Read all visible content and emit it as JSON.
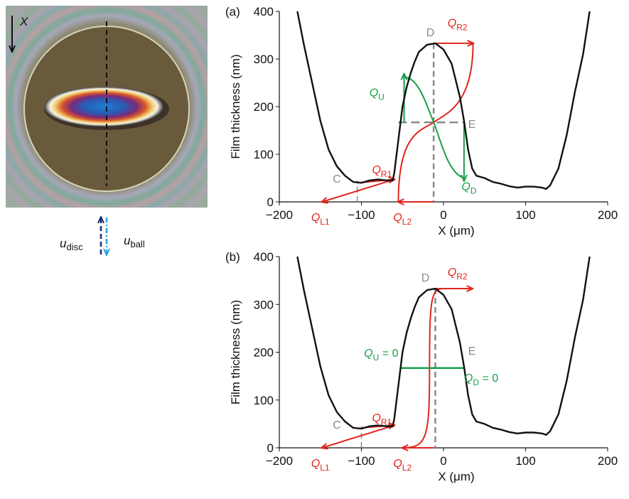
{
  "image_panel": {
    "axis_label": "X",
    "velocities": [
      {
        "text": "u",
        "sub": "disc"
      },
      {
        "text": "u",
        "sub": "ball"
      }
    ]
  },
  "chart_data": [
    {
      "type": "line",
      "panel_label": "(a)",
      "x_label": "X (μm)",
      "y_label": "Film thickness (nm)",
      "xlim": [
        -200,
        200
      ],
      "xticks": [
        {
          "value": -200,
          "label": "−200"
        },
        {
          "value": -100,
          "label": "−100"
        },
        0,
        100,
        200
      ],
      "ylim": [
        0,
        400
      ],
      "yticks": [
        0,
        100,
        200,
        300,
        400
      ],
      "series": [
        {
          "color": "#111111",
          "x": [
            -178,
            -170,
            -160,
            -150,
            -140,
            -130,
            -120,
            -110,
            -100,
            -90,
            -80,
            -70,
            -62,
            -60,
            -55,
            -50,
            -45,
            -40,
            -35,
            -30,
            -20,
            -10,
            0,
            10,
            20,
            25,
            30,
            35,
            40,
            50,
            60,
            70,
            80,
            90,
            100,
            110,
            120,
            125,
            130,
            140,
            150,
            160,
            170,
            178
          ],
          "values": [
            400,
            330,
            250,
            170,
            110,
            75,
            55,
            42,
            40,
            45,
            47,
            45,
            45,
            60,
            130,
            200,
            240,
            270,
            295,
            315,
            330,
            333,
            320,
            290,
            220,
            170,
            110,
            70,
            55,
            50,
            42,
            38,
            33,
            30,
            32,
            32,
            30,
            27,
            35,
            70,
            140,
            230,
            310,
            400
          ]
        }
      ],
      "annotations": [
        {
          "text": "C",
          "color": "#8a8a8a"
        },
        {
          "text": "D",
          "color": "#8a8a8a"
        },
        {
          "text": "E",
          "color": "#8a8a8a"
        },
        {
          "text": "Q",
          "sub": "R1",
          "color": "#e0261d"
        },
        {
          "text": "Q",
          "sub": "L1",
          "color": "#e0261d"
        },
        {
          "text": "Q",
          "sub": "L2",
          "color": "#e0261d"
        },
        {
          "text": "Q",
          "sub": "R2",
          "color": "#e0261d"
        },
        {
          "text": "Q",
          "sub": "U",
          "color": "#1a9e48"
        },
        {
          "text": "Q",
          "sub": "D",
          "color": "#1a9e48"
        }
      ]
    },
    {
      "type": "line",
      "panel_label": "(b)",
      "x_label": "X (μm)",
      "y_label": "Film thickness (nm)",
      "xlim": [
        -200,
        200
      ],
      "xticks": [
        {
          "value": -200,
          "label": "−200"
        },
        {
          "value": -100,
          "label": "−100"
        },
        0,
        100,
        200
      ],
      "ylim": [
        0,
        400
      ],
      "yticks": [
        0,
        100,
        200,
        300,
        400
      ],
      "series": [
        {
          "color": "#111111",
          "x": [
            -178,
            -170,
            -160,
            -150,
            -140,
            -130,
            -120,
            -110,
            -100,
            -90,
            -80,
            -70,
            -62,
            -60,
            -55,
            -50,
            -45,
            -40,
            -35,
            -30,
            -20,
            -10,
            0,
            10,
            20,
            25,
            30,
            35,
            40,
            50,
            60,
            70,
            80,
            90,
            100,
            110,
            120,
            125,
            130,
            140,
            150,
            160,
            170,
            178
          ],
          "values": [
            400,
            330,
            250,
            170,
            110,
            75,
            55,
            42,
            40,
            45,
            47,
            45,
            45,
            60,
            130,
            200,
            240,
            270,
            295,
            315,
            330,
            333,
            320,
            290,
            220,
            170,
            110,
            70,
            55,
            50,
            42,
            38,
            33,
            30,
            32,
            32,
            30,
            27,
            35,
            70,
            140,
            230,
            310,
            400
          ]
        }
      ],
      "annotations": [
        {
          "text": "C",
          "color": "#8a8a8a"
        },
        {
          "text": "D",
          "color": "#8a8a8a"
        },
        {
          "text": "E",
          "color": "#8a8a8a"
        },
        {
          "text": "Q",
          "sub": "R1",
          "color": "#e0261d"
        },
        {
          "text": "Q",
          "sub": "L1",
          "color": "#e0261d"
        },
        {
          "text": "Q",
          "sub": "L2",
          "color": "#e0261d"
        },
        {
          "text": "Q",
          "sub": "R2",
          "color": "#e0261d"
        },
        {
          "text": "Q",
          "sub": "U",
          "suffix": " = 0",
          "color": "#1a9e48"
        },
        {
          "text": "Q",
          "sub": "D",
          "suffix": " = 0",
          "color": "#1a9e48"
        }
      ]
    }
  ]
}
